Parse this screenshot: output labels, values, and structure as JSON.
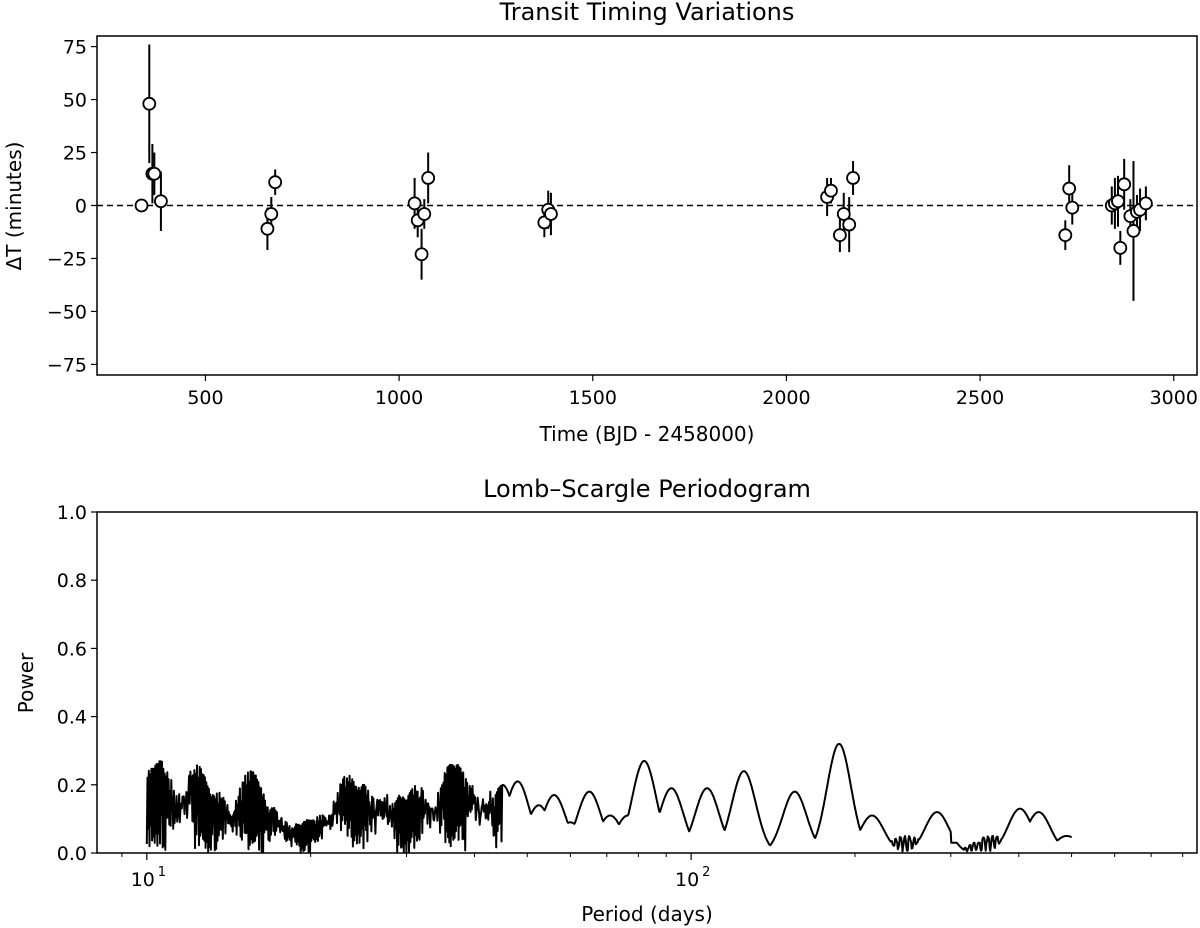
{
  "chart_data": [
    {
      "type": "scatter",
      "title": "Transit Timing Variations",
      "xlabel": "Time (BJD - 2458000)",
      "ylabel": "ΔT (minutes)",
      "xlim": [
        220,
        3060
      ],
      "ylim": [
        -80,
        80
      ],
      "xticks": [
        500,
        1000,
        1500,
        2000,
        2500,
        3000
      ],
      "xtick_labels": [
        "500",
        "1000",
        "1500",
        "2000",
        "2500",
        "3000"
      ],
      "yticks": [
        75,
        50,
        25,
        0,
        -25,
        -50,
        -75
      ],
      "ytick_labels": [
        "75",
        "50",
        "25",
        "0",
        "−25",
        "−50",
        "−75"
      ],
      "reference_line": {
        "y": 0,
        "style": "dashed"
      },
      "marker": "open circle with vertical error bars",
      "points": [
        {
          "x": 335,
          "y": 0,
          "err": 3
        },
        {
          "x": 355,
          "y": 48,
          "err": 28
        },
        {
          "x": 363,
          "y": 15,
          "err": 14
        },
        {
          "x": 368,
          "y": 15,
          "err": 10
        },
        {
          "x": 385,
          "y": 2,
          "err": 14
        },
        {
          "x": 660,
          "y": -11,
          "err": 10
        },
        {
          "x": 670,
          "y": -4,
          "err": 8
        },
        {
          "x": 680,
          "y": 11,
          "err": 6
        },
        {
          "x": 1040,
          "y": 1,
          "err": 12
        },
        {
          "x": 1048,
          "y": -7,
          "err": 8
        },
        {
          "x": 1058,
          "y": -23,
          "err": 12
        },
        {
          "x": 1065,
          "y": -4,
          "err": 7
        },
        {
          "x": 1075,
          "y": 13,
          "err": 12
        },
        {
          "x": 1375,
          "y": -8,
          "err": 7
        },
        {
          "x": 1385,
          "y": -2,
          "err": 9
        },
        {
          "x": 1392,
          "y": -4,
          "err": 10
        },
        {
          "x": 2105,
          "y": 4,
          "err": 9
        },
        {
          "x": 2115,
          "y": 7,
          "err": 6
        },
        {
          "x": 2138,
          "y": -14,
          "err": 8
        },
        {
          "x": 2148,
          "y": -4,
          "err": 10
        },
        {
          "x": 2162,
          "y": -9,
          "err": 13
        },
        {
          "x": 2172,
          "y": 13,
          "err": 8
        },
        {
          "x": 2720,
          "y": -14,
          "err": 7
        },
        {
          "x": 2730,
          "y": 8,
          "err": 11
        },
        {
          "x": 2738,
          "y": -1,
          "err": 8
        },
        {
          "x": 2840,
          "y": 0,
          "err": 9
        },
        {
          "x": 2848,
          "y": 1,
          "err": 12
        },
        {
          "x": 2856,
          "y": 2,
          "err": 12
        },
        {
          "x": 2862,
          "y": -20,
          "err": 8
        },
        {
          "x": 2872,
          "y": 10,
          "err": 12
        },
        {
          "x": 2888,
          "y": -5,
          "err": 8
        },
        {
          "x": 2896,
          "y": -12,
          "err": 33
        },
        {
          "x": 2905,
          "y": -3,
          "err": 8
        },
        {
          "x": 2913,
          "y": -2,
          "err": 10
        },
        {
          "x": 2928,
          "y": 1,
          "err": 8
        }
      ]
    },
    {
      "type": "line",
      "title": "Lomb–Scargle Periodogram",
      "xlabel": "Period (days)",
      "ylabel": "Power",
      "xscale": "log",
      "xlim": [
        8.1,
        850
      ],
      "ylim": [
        0,
        1.0
      ],
      "xticks": [
        10,
        100
      ],
      "xtick_base_labels": [
        "10",
        "10"
      ],
      "xtick_exponents": [
        "1",
        "2"
      ],
      "yticks": [
        0.0,
        0.2,
        0.4,
        0.6,
        0.8,
        1.0
      ],
      "ytick_labels": [
        "0.0",
        "0.2",
        "0.4",
        "0.6",
        "0.8",
        "1.0"
      ],
      "period_range": [
        10,
        500
      ],
      "peaks": [
        {
          "period": 10.0,
          "power": 0.17
        },
        {
          "period": 10.2,
          "power": 0.25
        },
        {
          "period": 10.6,
          "power": 0.27
        },
        {
          "period": 11.5,
          "power": 0.19
        },
        {
          "period": 12.3,
          "power": 0.26
        },
        {
          "period": 13.5,
          "power": 0.18
        },
        {
          "period": 14.6,
          "power": 0.13
        },
        {
          "period": 15.5,
          "power": 0.24
        },
        {
          "period": 17.0,
          "power": 0.14
        },
        {
          "period": 18.5,
          "power": 0.09
        },
        {
          "period": 20.0,
          "power": 0.1
        },
        {
          "period": 21.5,
          "power": 0.13
        },
        {
          "period": 23.3,
          "power": 0.23
        },
        {
          "period": 25.0,
          "power": 0.2
        },
        {
          "period": 27.0,
          "power": 0.19
        },
        {
          "period": 29.0,
          "power": 0.17
        },
        {
          "period": 31.5,
          "power": 0.2
        },
        {
          "period": 34.0,
          "power": 0.17
        },
        {
          "period": 36.3,
          "power": 0.26
        },
        {
          "period": 37.0,
          "power": 0.26
        },
        {
          "period": 39.5,
          "power": 0.21
        },
        {
          "period": 42.0,
          "power": 0.2
        },
        {
          "period": 45.0,
          "power": 0.2
        },
        {
          "period": 48.0,
          "power": 0.21
        },
        {
          "period": 52.5,
          "power": 0.14
        },
        {
          "period": 56.0,
          "power": 0.17
        },
        {
          "period": 60.0,
          "power": 0.09
        },
        {
          "period": 65.0,
          "power": 0.18
        },
        {
          "period": 71.0,
          "power": 0.11
        },
        {
          "period": 76.5,
          "power": 0.11
        },
        {
          "period": 82.0,
          "power": 0.27
        },
        {
          "period": 92.0,
          "power": 0.19
        },
        {
          "period": 107.0,
          "power": 0.19
        },
        {
          "period": 125.0,
          "power": 0.24
        },
        {
          "period": 155.0,
          "power": 0.18
        },
        {
          "period": 187.0,
          "power": 0.32
        },
        {
          "period": 215.0,
          "power": 0.11
        },
        {
          "period": 283.0,
          "power": 0.12
        },
        {
          "period": 402.0,
          "power": 0.13
        },
        {
          "period": 435.0,
          "power": 0.12
        },
        {
          "period": 490.0,
          "power": 0.05
        }
      ]
    }
  ]
}
